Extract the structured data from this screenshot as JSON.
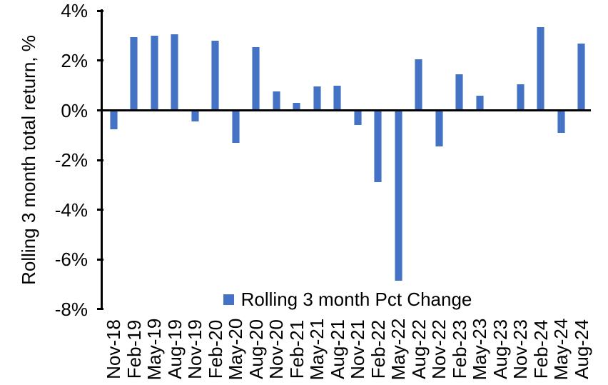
{
  "chart_data": {
    "type": "bar",
    "title": "",
    "xlabel": "",
    "ylabel": "Rolling 3 month total return, %",
    "legend": [
      "Rolling 3 month Pct Change"
    ],
    "legend_position": "bottom-center-inside-plot",
    "grid": false,
    "ylim": [
      -8,
      4
    ],
    "ytick_step": 2,
    "ytick_labels": [
      "4%",
      "2%",
      "0%",
      "-2%",
      "-4%",
      "-6%",
      "-8%"
    ],
    "categories": [
      "Nov-18",
      "Feb-19",
      "May-19",
      "Aug-19",
      "Nov-19",
      "Feb-20",
      "May-20",
      "Aug-20",
      "Nov-20",
      "Feb-21",
      "May-21",
      "Aug-21",
      "Nov-21",
      "Feb-22",
      "May-22",
      "Aug-22",
      "Nov-22",
      "Feb-23",
      "May-23",
      "Aug-23",
      "Nov-23",
      "Feb-24",
      "May-24",
      "Aug-24"
    ],
    "values": [
      -0.75,
      2.95,
      3.0,
      3.05,
      -0.45,
      2.8,
      -1.3,
      2.55,
      0.75,
      0.3,
      0.95,
      1.0,
      -0.6,
      -2.9,
      -6.85,
      2.05,
      -1.45,
      1.45,
      0.6,
      0.0,
      1.05,
      3.35,
      -0.9,
      2.7
    ],
    "colors": {
      "bar_fill": "#4472C4",
      "bar_edge": "#94AEDE",
      "axis": "#000000",
      "text": "#000000",
      "background": "#FFFFFF"
    }
  }
}
